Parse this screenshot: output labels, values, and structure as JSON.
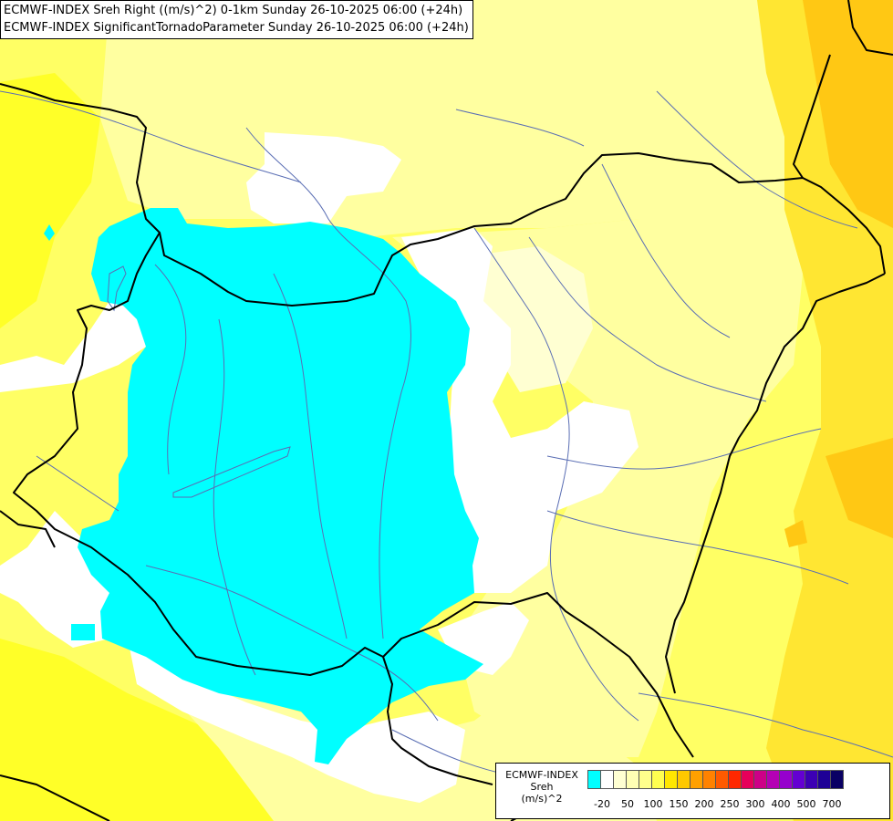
{
  "header": {
    "line1": "ECMWF-INDEX Sreh Right ((m/s)^2) 0-1km Sunday 26-10-2025 06:00 (+24h)",
    "line2": "ECMWF-INDEX SignificantTornadoParameter Sunday 26-10-2025 06:00 (+24h)"
  },
  "legend": {
    "title": "ECMWF-INDEX",
    "variable": "Sreh",
    "unit": "(m/s)^2",
    "colors": [
      "#00ffff",
      "#ffffff",
      "#ffffd2",
      "#ffffb4",
      "#ffff8c",
      "#ffff50",
      "#ffe600",
      "#ffc800",
      "#ffa000",
      "#ff8200",
      "#ff5a00",
      "#ff2800",
      "#e6005a",
      "#cd0087",
      "#b400b4",
      "#9600cd",
      "#6400d2",
      "#3c00b4",
      "#1e0096",
      "#0a0064"
    ],
    "tick_labels": [
      "-20",
      "50",
      "100",
      "150",
      "200",
      "250",
      "300",
      "400",
      "500",
      "700"
    ]
  },
  "map_colors": {
    "cyan": "#00ffff",
    "white": "#ffffff",
    "very_pale": "#ffffd2",
    "pale": "#ffffa0",
    "light": "#ffff64",
    "yellow": "#ffff28",
    "gold": "#ffe632",
    "orange": "#ffc814",
    "border": "#000000",
    "river": "#5a6eb4"
  }
}
